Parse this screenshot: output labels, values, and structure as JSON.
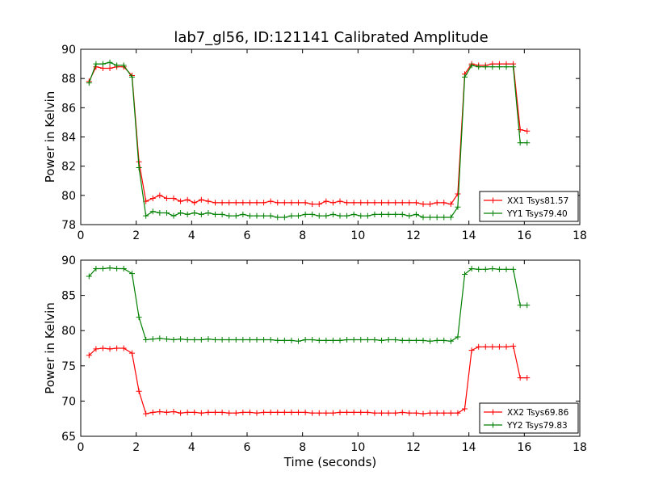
{
  "figure": {
    "title": "lab7_gl56, ID:121141 Calibrated Amplitude"
  },
  "chart_data": [
    {
      "type": "line",
      "title": "lab7_gl56, ID:121141 Calibrated Amplitude",
      "xlabel": "",
      "ylabel": "Power in Kelvin",
      "xlim": [
        0,
        18
      ],
      "ylim": [
        78,
        90
      ],
      "xticks": [
        0,
        2,
        4,
        6,
        8,
        10,
        12,
        14,
        16,
        18
      ],
      "yticks": [
        78,
        80,
        82,
        84,
        86,
        88,
        90
      ],
      "legend_position": "lower-right",
      "x": [
        0.3,
        0.55,
        0.8,
        1.05,
        1.3,
        1.55,
        1.85,
        2.1,
        2.35,
        2.6,
        2.85,
        3.1,
        3.35,
        3.6,
        3.85,
        4.1,
        4.35,
        4.6,
        4.85,
        5.1,
        5.35,
        5.6,
        5.85,
        6.1,
        6.35,
        6.6,
        6.85,
        7.1,
        7.35,
        7.6,
        7.85,
        8.1,
        8.35,
        8.6,
        8.85,
        9.1,
        9.35,
        9.6,
        9.85,
        10.1,
        10.35,
        10.6,
        10.85,
        11.1,
        11.35,
        11.6,
        11.85,
        12.1,
        12.35,
        12.6,
        12.85,
        13.1,
        13.35,
        13.6,
        13.85,
        14.1,
        14.35,
        14.6,
        14.85,
        15.1,
        15.35,
        15.6,
        15.85,
        16.1
      ],
      "series": [
        {
          "name": "XX1 Tsys81.57",
          "color": "#ff0000",
          "values": [
            87.8,
            88.8,
            88.7,
            88.7,
            88.8,
            88.8,
            88.2,
            82.3,
            79.6,
            79.8,
            80.0,
            79.8,
            79.8,
            79.6,
            79.7,
            79.5,
            79.7,
            79.6,
            79.5,
            79.5,
            79.5,
            79.5,
            79.5,
            79.5,
            79.5,
            79.5,
            79.6,
            79.5,
            79.5,
            79.5,
            79.5,
            79.5,
            79.4,
            79.4,
            79.6,
            79.5,
            79.6,
            79.5,
            79.5,
            79.5,
            79.5,
            79.5,
            79.5,
            79.5,
            79.5,
            79.5,
            79.5,
            79.5,
            79.4,
            79.4,
            79.5,
            79.5,
            79.4,
            80.1,
            88.3,
            89.0,
            88.9,
            88.9,
            89.0,
            89.0,
            89.0,
            89.0,
            84.5,
            84.4
          ]
        },
        {
          "name": "YY1 Tsys79.40",
          "color": "#008000",
          "values": [
            87.7,
            89.0,
            89.0,
            89.1,
            88.9,
            88.9,
            88.1,
            81.9,
            78.6,
            78.9,
            78.8,
            78.8,
            78.6,
            78.8,
            78.7,
            78.8,
            78.7,
            78.8,
            78.7,
            78.7,
            78.6,
            78.6,
            78.7,
            78.6,
            78.6,
            78.6,
            78.6,
            78.5,
            78.5,
            78.6,
            78.6,
            78.7,
            78.7,
            78.6,
            78.6,
            78.7,
            78.6,
            78.6,
            78.7,
            78.6,
            78.6,
            78.7,
            78.7,
            78.7,
            78.7,
            78.7,
            78.6,
            78.7,
            78.5,
            78.5,
            78.5,
            78.5,
            78.5,
            79.2,
            88.1,
            88.9,
            88.8,
            88.8,
            88.8,
            88.8,
            88.8,
            88.8,
            83.6,
            83.6
          ]
        }
      ]
    },
    {
      "type": "line",
      "title": "",
      "xlabel": "Time (seconds)",
      "ylabel": "Power in Kelvin",
      "xlim": [
        0,
        18
      ],
      "ylim": [
        65,
        90
      ],
      "xticks": [
        0,
        2,
        4,
        6,
        8,
        10,
        12,
        14,
        16,
        18
      ],
      "yticks": [
        65,
        70,
        75,
        80,
        85,
        90
      ],
      "legend_position": "lower-right",
      "x": [
        0.3,
        0.55,
        0.8,
        1.05,
        1.3,
        1.55,
        1.85,
        2.1,
        2.35,
        2.6,
        2.85,
        3.1,
        3.35,
        3.6,
        3.85,
        4.1,
        4.35,
        4.6,
        4.85,
        5.1,
        5.35,
        5.6,
        5.85,
        6.1,
        6.35,
        6.6,
        6.85,
        7.1,
        7.35,
        7.6,
        7.85,
        8.1,
        8.35,
        8.6,
        8.85,
        9.1,
        9.35,
        9.6,
        9.85,
        10.1,
        10.35,
        10.6,
        10.85,
        11.1,
        11.35,
        11.6,
        11.85,
        12.1,
        12.35,
        12.6,
        12.85,
        13.1,
        13.35,
        13.6,
        13.85,
        14.1,
        14.35,
        14.6,
        14.85,
        15.1,
        15.35,
        15.6,
        15.85,
        16.1
      ],
      "series": [
        {
          "name": "XX2 Tsys69.86",
          "color": "#ff0000",
          "values": [
            76.5,
            77.4,
            77.5,
            77.4,
            77.5,
            77.5,
            76.8,
            71.4,
            68.2,
            68.4,
            68.5,
            68.4,
            68.5,
            68.3,
            68.4,
            68.4,
            68.3,
            68.4,
            68.4,
            68.4,
            68.3,
            68.3,
            68.4,
            68.4,
            68.3,
            68.4,
            68.4,
            68.4,
            68.4,
            68.4,
            68.4,
            68.4,
            68.3,
            68.3,
            68.3,
            68.3,
            68.4,
            68.4,
            68.4,
            68.4,
            68.4,
            68.3,
            68.3,
            68.3,
            68.3,
            68.4,
            68.3,
            68.3,
            68.2,
            68.3,
            68.3,
            68.3,
            68.3,
            68.3,
            68.9,
            77.2,
            77.7,
            77.7,
            77.7,
            77.7,
            77.7,
            77.8,
            73.3,
            73.3
          ]
        },
        {
          "name": "YY2 Tsys79.83",
          "color": "#008000",
          "values": [
            87.7,
            88.8,
            88.8,
            88.9,
            88.8,
            88.8,
            88.1,
            81.9,
            78.7,
            78.8,
            78.9,
            78.8,
            78.7,
            78.8,
            78.7,
            78.7,
            78.7,
            78.8,
            78.7,
            78.7,
            78.7,
            78.7,
            78.7,
            78.7,
            78.7,
            78.7,
            78.7,
            78.6,
            78.6,
            78.6,
            78.5,
            78.7,
            78.7,
            78.6,
            78.6,
            78.6,
            78.6,
            78.7,
            78.7,
            78.7,
            78.7,
            78.7,
            78.6,
            78.7,
            78.7,
            78.6,
            78.6,
            78.6,
            78.6,
            78.5,
            78.6,
            78.6,
            78.5,
            79.1,
            88.0,
            88.8,
            88.7,
            88.7,
            88.8,
            88.7,
            88.7,
            88.7,
            83.6,
            83.6
          ]
        }
      ]
    }
  ]
}
